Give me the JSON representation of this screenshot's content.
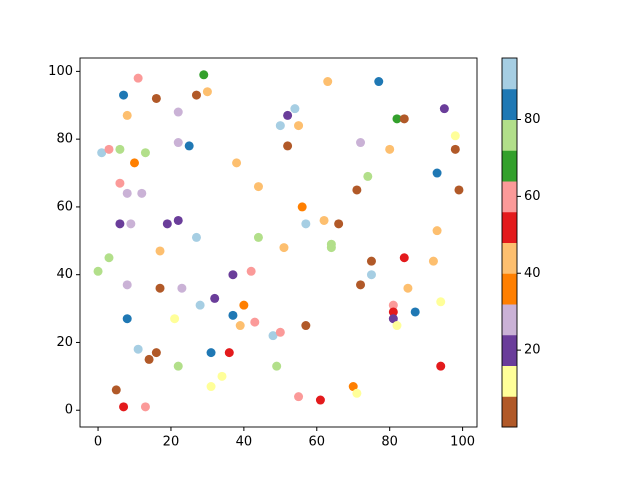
{
  "chart_data": {
    "type": "scatter",
    "x": [
      1,
      3,
      6,
      11,
      7,
      8,
      16,
      22,
      29,
      30,
      27,
      22,
      25,
      13,
      10,
      6,
      8,
      12,
      6,
      9,
      19,
      22,
      27,
      17,
      3,
      0,
      8,
      17,
      23,
      37,
      42,
      40,
      28,
      32,
      37,
      39,
      43,
      8,
      21,
      11,
      16,
      14,
      31,
      36,
      22,
      34,
      31,
      5,
      7,
      13,
      48,
      50,
      49,
      55,
      61,
      70,
      71,
      57,
      51,
      44,
      44,
      38,
      50,
      54,
      52,
      55,
      52,
      63,
      77,
      82,
      84,
      95,
      98,
      98,
      72,
      80,
      93,
      74,
      71,
      99,
      56,
      62,
      66,
      57,
      64,
      64,
      75,
      84,
      93,
      92,
      75,
      72,
      85,
      94,
      81,
      81,
      81,
      82,
      87,
      94
    ],
    "y": [
      76,
      77,
      77,
      98,
      93,
      87,
      92,
      88,
      99,
      94,
      93,
      79,
      78,
      76,
      73,
      67,
      64,
      64,
      55,
      55,
      55,
      56,
      51,
      47,
      45,
      41,
      37,
      36,
      36,
      40,
      41,
      31,
      31,
      33,
      28,
      25,
      26,
      27,
      27,
      18,
      17,
      15,
      17,
      17,
      13,
      10,
      7,
      6,
      1,
      1,
      22,
      23,
      13,
      4,
      3,
      7,
      5,
      25,
      48,
      51,
      66,
      73,
      84,
      89,
      87,
      84,
      78,
      97,
      97,
      86,
      86,
      89,
      81,
      77,
      79,
      77,
      70,
      69,
      65,
      65,
      60,
      56,
      55,
      55,
      49,
      48,
      44,
      45,
      53,
      44,
      40,
      37,
      36,
      32,
      31,
      29,
      27,
      25,
      29,
      13
    ],
    "c": [
      92,
      60,
      76,
      60,
      84,
      44,
      4,
      28,
      68,
      44,
      4,
      28,
      84,
      76,
      36,
      60,
      28,
      28,
      20,
      28,
      20,
      20,
      92,
      44,
      76,
      76,
      28,
      4,
      28,
      20,
      60,
      36,
      92,
      20,
      84,
      44,
      60,
      84,
      12,
      92,
      4,
      4,
      84,
      52,
      76,
      12,
      12,
      4,
      52,
      60,
      92,
      60,
      76,
      60,
      52,
      36,
      12,
      4,
      44,
      76,
      44,
      44,
      92,
      92,
      20,
      44,
      4,
      44,
      84,
      68,
      4,
      20,
      12,
      4,
      28,
      44,
      84,
      76,
      4,
      4,
      36,
      44,
      4,
      92,
      76,
      76,
      4,
      52,
      44,
      44,
      92,
      4,
      44,
      12,
      60,
      52,
      20,
      12,
      84,
      52
    ],
    "colormap": [
      "#b15928",
      "#ffff99",
      "#6a3d9a",
      "#cab2d6",
      "#ff7f00",
      "#fdbf6f",
      "#e31a1c",
      "#fb9a99",
      "#33a02c",
      "#b2df8a",
      "#1f78b4",
      "#a6cee3"
    ],
    "clim": [
      0,
      96
    ],
    "cticks": [
      20,
      40,
      60,
      80
    ],
    "xlim": [
      -4.95,
      103.95
    ],
    "ylim": [
      -4.95,
      103.95
    ],
    "xticks": [
      0,
      20,
      40,
      60,
      80,
      100
    ],
    "yticks": [
      0,
      20,
      40,
      60,
      80,
      100
    ]
  }
}
